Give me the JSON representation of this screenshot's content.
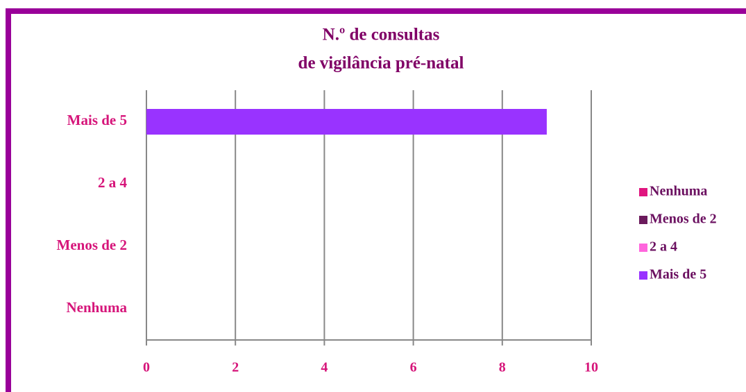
{
  "chart_data": {
    "type": "hbar",
    "title": [
      "N.º de consultas",
      "de vigilância pré-natal"
    ],
    "categories": [
      "Nenhuma",
      "Menos de 2",
      "2 a 4",
      "Mais de 5"
    ],
    "values": [
      0,
      0,
      0,
      9
    ],
    "colors": [
      "#e0157f",
      "#6b1a5c",
      "#ff66dd",
      "#9933ff"
    ],
    "xlim": [
      0,
      10
    ],
    "xticks": [
      0,
      2,
      4,
      6,
      8,
      10
    ],
    "grid": true,
    "legend": "right"
  }
}
